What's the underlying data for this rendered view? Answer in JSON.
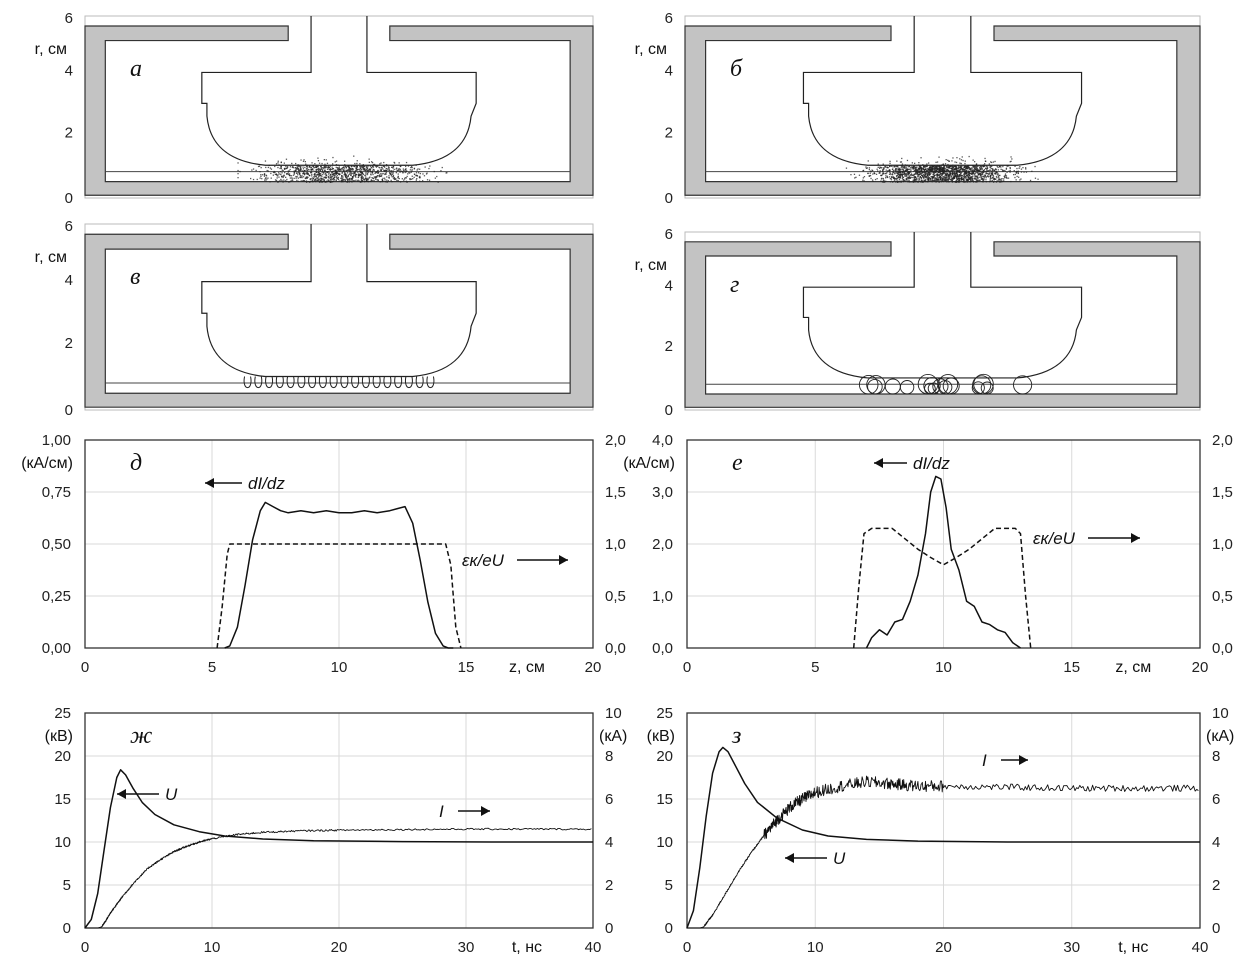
{
  "figure": {
    "panels": [
      {
        "id": "a",
        "letter": "а",
        "ylabel": "r, см",
        "yticks": [
          "6",
          "4",
          "2",
          "0"
        ],
        "mode": "dots",
        "density": 1
      },
      {
        "id": "b",
        "letter": "б",
        "ylabel": "r, см",
        "yticks": [
          "6",
          "4",
          "2",
          "0"
        ],
        "mode": "dots",
        "density": 2
      },
      {
        "id": "v",
        "letter": "в",
        "ylabel": "r, см",
        "yticks": [
          "6",
          "4",
          "2",
          "0"
        ],
        "mode": "loops"
      },
      {
        "id": "g",
        "letter": "г",
        "ylabel": "r, см",
        "yticks": [
          "6",
          "4",
          "2",
          "0"
        ],
        "mode": "circles"
      }
    ]
  },
  "chart_data": [
    {
      "id": "d",
      "letter": "д",
      "type": "line",
      "xlabel": "z, см",
      "xlim": [
        0,
        20
      ],
      "xticks": [
        "0",
        "5",
        "10",
        "15",
        "20"
      ],
      "ylabel": "(кА/см)",
      "ylim": [
        0,
        1.0
      ],
      "yticks": [
        "1,00",
        "0,75",
        "0,50",
        "0,25",
        "0,00"
      ],
      "y2lim": [
        0,
        2.0
      ],
      "y2ticks": [
        "2,0",
        "1,5",
        "1,0",
        "0,5",
        "0,0"
      ],
      "series": [
        {
          "name": "dI/dz",
          "axis": "left",
          "style": "solid",
          "x": [
            5.5,
            5.7,
            6.0,
            6.3,
            6.6,
            6.9,
            7.1,
            7.4,
            7.7,
            8.0,
            8.5,
            9.0,
            9.5,
            10,
            10.5,
            11,
            11.5,
            12,
            12.3,
            12.6,
            12.9,
            13.2,
            13.5,
            13.8,
            14.1,
            14.3,
            14.5
          ],
          "y": [
            0,
            0.01,
            0.1,
            0.3,
            0.52,
            0.66,
            0.7,
            0.68,
            0.66,
            0.65,
            0.66,
            0.65,
            0.66,
            0.65,
            0.65,
            0.66,
            0.65,
            0.66,
            0.67,
            0.68,
            0.6,
            0.42,
            0.22,
            0.07,
            0.01,
            0,
            0
          ]
        },
        {
          "name": "εк/eU",
          "axis": "right",
          "style": "dashed",
          "x": [
            5.2,
            5.4,
            5.6,
            5.7,
            6.0,
            8,
            10,
            12,
            13.5,
            14.2,
            14.4,
            14.6,
            14.8
          ],
          "y": [
            0,
            0.4,
            0.9,
            1.0,
            1.0,
            1.0,
            1.0,
            1.0,
            1.0,
            1.0,
            0.8,
            0.2,
            0
          ]
        }
      ],
      "annotations": [
        {
          "text": "dI/dz",
          "arrow": "left"
        },
        {
          "text": "εк/eU",
          "arrow": "right"
        }
      ]
    },
    {
      "id": "e",
      "letter": "е",
      "type": "line",
      "xlabel": "z, см",
      "xlim": [
        0,
        20
      ],
      "xticks": [
        "0",
        "5",
        "10",
        "15",
        "20"
      ],
      "ylabel": "(кА/см)",
      "ylim": [
        0,
        4.0
      ],
      "yticks": [
        "4,0",
        "3,0",
        "2,0",
        "1,0",
        "0,0"
      ],
      "y2lim": [
        0,
        2.0
      ],
      "y2ticks": [
        "2,0",
        "1,5",
        "1,0",
        "0,5",
        "0,0"
      ],
      "series": [
        {
          "name": "dI/dz",
          "axis": "left",
          "style": "solid",
          "x": [
            7.0,
            7.2,
            7.5,
            7.8,
            8.1,
            8.4,
            8.7,
            9.0,
            9.3,
            9.5,
            9.7,
            9.9,
            10.1,
            10.3,
            10.6,
            10.9,
            11.2,
            11.5,
            11.8,
            12.1,
            12.4,
            12.7,
            13.0
          ],
          "y": [
            0,
            0.2,
            0.35,
            0.25,
            0.5,
            0.55,
            0.9,
            1.4,
            2.2,
            3.0,
            3.3,
            3.25,
            2.7,
            1.9,
            1.5,
            0.9,
            0.8,
            0.5,
            0.45,
            0.35,
            0.3,
            0.1,
            0
          ]
        },
        {
          "name": "εк/eU",
          "axis": "right",
          "style": "dashed",
          "x": [
            6.5,
            6.7,
            6.9,
            7.2,
            7.6,
            8.0,
            8.5,
            9.0,
            9.5,
            10.0,
            10.5,
            11.0,
            11.5,
            12.0,
            12.4,
            12.8,
            13.0,
            13.2,
            13.4
          ],
          "y": [
            0,
            0.6,
            1.1,
            1.15,
            1.15,
            1.15,
            1.05,
            0.95,
            0.87,
            0.8,
            0.87,
            0.95,
            1.05,
            1.15,
            1.15,
            1.15,
            1.1,
            0.5,
            0
          ]
        }
      ],
      "annotations": [
        {
          "text": "dI/dz",
          "arrow": "left"
        },
        {
          "text": "εк/eU",
          "arrow": "right"
        }
      ]
    },
    {
      "id": "zh",
      "letter": "ж",
      "type": "line",
      "xlabel": "t, нс",
      "xlim": [
        0,
        40
      ],
      "xticks": [
        "0",
        "10",
        "20",
        "30",
        "40"
      ],
      "ylabel": "(кВ)",
      "ylim": [
        0,
        25
      ],
      "yticks": [
        "25",
        "20",
        "15",
        "10",
        "5",
        "0"
      ],
      "y2label": "(кА)",
      "y2lim": [
        0,
        10
      ],
      "y2ticks": [
        "10",
        "8",
        "6",
        "4",
        "2",
        "0"
      ],
      "series": [
        {
          "name": "U",
          "axis": "left",
          "style": "solid",
          "x": [
            0,
            0.5,
            1,
            1.5,
            2,
            2.5,
            2.8,
            3.2,
            3.8,
            4.5,
            5.5,
            7,
            9,
            11,
            14,
            18,
            25,
            32,
            40
          ],
          "y": [
            0,
            1,
            4,
            9,
            14,
            17.5,
            18.4,
            17.8,
            16.2,
            14.6,
            13.2,
            12,
            11.2,
            10.7,
            10.35,
            10.15,
            10.05,
            10,
            10
          ]
        },
        {
          "name": "I",
          "axis": "right",
          "style": "noisy",
          "x": [
            0,
            1,
            1.3,
            1.6,
            2,
            2.5,
            3,
            4,
            5,
            6,
            7,
            8,
            9,
            10,
            12,
            14,
            17,
            20,
            25,
            30,
            35,
            40
          ],
          "y": [
            0,
            0,
            0.05,
            0.3,
            0.7,
            1.1,
            1.5,
            2.2,
            2.8,
            3.2,
            3.55,
            3.8,
            4.0,
            4.15,
            4.35,
            4.45,
            4.52,
            4.55,
            4.58,
            4.6,
            4.6,
            4.6
          ]
        }
      ],
      "annotations": [
        {
          "text": "U",
          "arrow": "left"
        },
        {
          "text": "I",
          "arrow": "right"
        }
      ]
    },
    {
      "id": "z",
      "letter": "з",
      "type": "line",
      "xlabel": "t, нс",
      "xlim": [
        0,
        40
      ],
      "xticks": [
        "0",
        "10",
        "20",
        "30",
        "40"
      ],
      "ylabel": "(кВ)",
      "ylim": [
        0,
        25
      ],
      "yticks": [
        "25",
        "20",
        "15",
        "10",
        "5",
        "0"
      ],
      "y2label": "(кА)",
      "y2lim": [
        0,
        10
      ],
      "y2ticks": [
        "10",
        "8",
        "6",
        "4",
        "2",
        "0"
      ],
      "series": [
        {
          "name": "U",
          "axis": "left",
          "style": "solid",
          "x": [
            0,
            0.5,
            1,
            1.5,
            2,
            2.5,
            2.8,
            3.2,
            3.8,
            4.5,
            5.5,
            7,
            9,
            11,
            14,
            18,
            25,
            32,
            40
          ],
          "y": [
            0,
            2,
            7,
            13,
            18,
            20.5,
            21,
            20.5,
            18.8,
            16.8,
            14.6,
            12.8,
            11.4,
            10.7,
            10.3,
            10.1,
            10,
            10,
            10
          ]
        },
        {
          "name": "I",
          "axis": "right",
          "style": "noisy",
          "x": [
            0,
            1,
            1.3,
            1.6,
            2,
            3,
            4,
            5,
            6,
            7,
            8,
            9,
            10,
            12,
            14,
            16,
            18,
            20,
            25,
            30,
            35,
            40
          ],
          "y": [
            0,
            0,
            0.05,
            0.3,
            0.6,
            1.6,
            2.6,
            3.5,
            4.3,
            5.0,
            5.6,
            6.0,
            6.3,
            6.6,
            6.8,
            6.7,
            6.6,
            6.6,
            6.55,
            6.5,
            6.5,
            6.5
          ]
        }
      ],
      "annotations": [
        {
          "text": "I",
          "arrow": "right"
        },
        {
          "text": "U",
          "arrow": "left"
        }
      ]
    }
  ]
}
